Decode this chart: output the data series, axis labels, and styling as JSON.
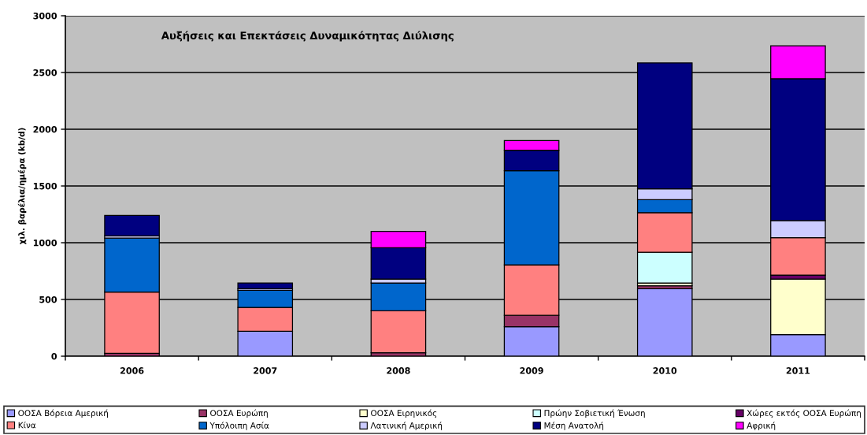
{
  "chart_data": {
    "type": "bar",
    "title": "Αυξήσεις και Επεκτάσεις Δυναμικότητας Διύλισης",
    "ylabel": "χιλ. βαρέλια/ημέρα (kb/d)",
    "categories": [
      "2006",
      "2007",
      "2008",
      "2009",
      "2010",
      "2011"
    ],
    "stacked": true,
    "ylim": [
      0,
      3000
    ],
    "yticks": [
      0,
      500,
      1000,
      1500,
      2000,
      2500,
      3000
    ],
    "grid": "y",
    "legend": "bottom",
    "series": [
      {
        "name": "ΟΟΣΑ Βόρεια Αμερική",
        "color": "#9999ff",
        "values": [
          null,
          220,
          null,
          260,
          595,
          190
        ]
      },
      {
        "name": "ΟΟΣΑ Ευρώπη",
        "color": "#993366",
        "values": [
          25,
          null,
          30,
          100,
          25,
          null
        ]
      },
      {
        "name": "ΟΟΣΑ Ειρηνικός",
        "color": "#ffffcc",
        "values": [
          null,
          null,
          null,
          null,
          25,
          490
        ]
      },
      {
        "name": "Πρώην Σοβιετική Ένωση",
        "color": "#ccffff",
        "values": [
          null,
          null,
          null,
          null,
          270,
          null
        ]
      },
      {
        "name": "Χώρες εκτός ΟΟΣΑ Ευρώπη",
        "color": "#660066",
        "values": [
          null,
          null,
          null,
          null,
          null,
          35
        ]
      },
      {
        "name": "Κίνα",
        "color": "#ff8080",
        "values": [
          540,
          210,
          370,
          445,
          350,
          330
        ]
      },
      {
        "name": "Υπόλοιπη Ασία",
        "color": "#0066cc",
        "values": [
          475,
          150,
          245,
          830,
          115,
          null
        ]
      },
      {
        "name": "Λατινική Αμερική",
        "color": "#ccccff",
        "values": [
          20,
          15,
          35,
          null,
          95,
          150
        ]
      },
      {
        "name": "Μέση Ανατολή",
        "color": "#000080",
        "values": [
          180,
          50,
          275,
          180,
          1110,
          1250
        ]
      },
      {
        "name": "Αφρική",
        "color": "#ff00ff",
        "values": [
          null,
          null,
          145,
          85,
          null,
          290
        ]
      }
    ]
  }
}
